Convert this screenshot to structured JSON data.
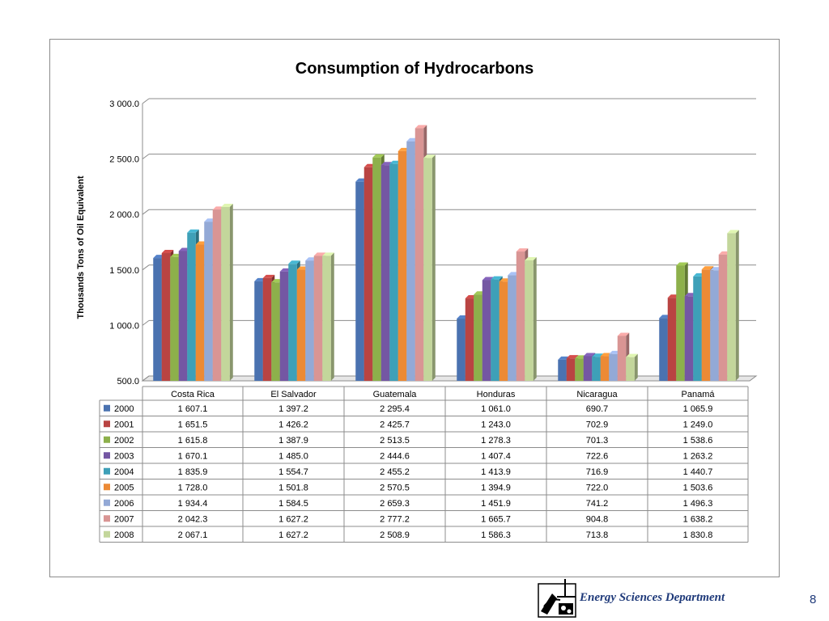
{
  "chart_data": {
    "type": "bar",
    "title": "Consumption of Hydrocarbons",
    "ylabel": "Thousands Tons of Oil Equivalent",
    "xlabel": "",
    "ylim": [
      500,
      3000
    ],
    "yticks": [
      "500.0",
      "1 000.0",
      "1 500.0",
      "2 000.0",
      "2 500.0",
      "3 000.0"
    ],
    "ytick_values": [
      500,
      1000,
      1500,
      2000,
      2500,
      3000
    ],
    "grid": true,
    "legend": "data-table",
    "style": "3d-clustered-column",
    "categories": [
      "Costa Rica",
      "El Salvador",
      "Guatemala",
      "Honduras",
      "Nicaragua",
      "Panamá"
    ],
    "series": [
      {
        "name": "2000",
        "color": "#4a72b0",
        "values": [
          1607.1,
          1397.2,
          2295.4,
          1061.0,
          690.7,
          1065.9
        ],
        "labels": [
          "1 607.1",
          "1 397.2",
          "2 295.4",
          "1 061.0",
          "690.7",
          "1 065.9"
        ]
      },
      {
        "name": "2001",
        "color": "#b94442",
        "values": [
          1651.5,
          1426.2,
          2425.7,
          1243.0,
          702.9,
          1249.0
        ],
        "labels": [
          "1 651.5",
          "1 426.2",
          "2 425.7",
          "1 243.0",
          "702.9",
          "1 249.0"
        ]
      },
      {
        "name": "2002",
        "color": "#8db04b",
        "values": [
          1615.8,
          1387.9,
          2513.5,
          1278.3,
          701.3,
          1538.6
        ],
        "labels": [
          "1 615.8",
          "1 387.9",
          "2 513.5",
          "1 278.3",
          "701.3",
          "1 538.6"
        ]
      },
      {
        "name": "2003",
        "color": "#7457a3",
        "values": [
          1670.1,
          1485.0,
          2444.6,
          1407.4,
          722.6,
          1263.2
        ],
        "labels": [
          "1 670.1",
          "1 485.0",
          "2 444.6",
          "1 407.4",
          "722.6",
          "1 263.2"
        ]
      },
      {
        "name": "2004",
        "color": "#3ea0b8",
        "values": [
          1835.9,
          1554.7,
          2455.2,
          1413.9,
          716.9,
          1440.7
        ],
        "labels": [
          "1 835.9",
          "1 554.7",
          "2 455.2",
          "1 413.9",
          "716.9",
          "1 440.7"
        ]
      },
      {
        "name": "2005",
        "color": "#ec8a35",
        "values": [
          1728.0,
          1501.8,
          2570.5,
          1394.9,
          722.0,
          1503.6
        ],
        "labels": [
          "1 728.0",
          "1 501.8",
          "2 570.5",
          "1 394.9",
          "722.0",
          "1 503.6"
        ]
      },
      {
        "name": "2006",
        "color": "#93a9d6",
        "values": [
          1934.4,
          1584.5,
          2659.3,
          1451.9,
          741.2,
          1496.3
        ],
        "labels": [
          "1 934.4",
          "1 584.5",
          "2 659.3",
          "1 451.9",
          "741.2",
          "1 496.3"
        ]
      },
      {
        "name": "2007",
        "color": "#d99594",
        "values": [
          2042.3,
          1627.2,
          2777.2,
          1665.7,
          904.8,
          1638.2
        ],
        "labels": [
          "2 042.3",
          "1 627.2",
          "2 777.2",
          "1 665.7",
          "904.8",
          "1 638.2"
        ]
      },
      {
        "name": "2008",
        "color": "#c3d69b",
        "values": [
          2067.1,
          1627.2,
          2508.9,
          1586.3,
          713.8,
          1830.8
        ],
        "labels": [
          "2 067.1",
          "1 627.2",
          "2 508.9",
          "1 586.3",
          "713.8",
          "1 830.8"
        ]
      }
    ]
  },
  "footer": {
    "department": "Energy Sciences Department",
    "page_number": "8",
    "logo_icon": "department-logo-icon"
  }
}
